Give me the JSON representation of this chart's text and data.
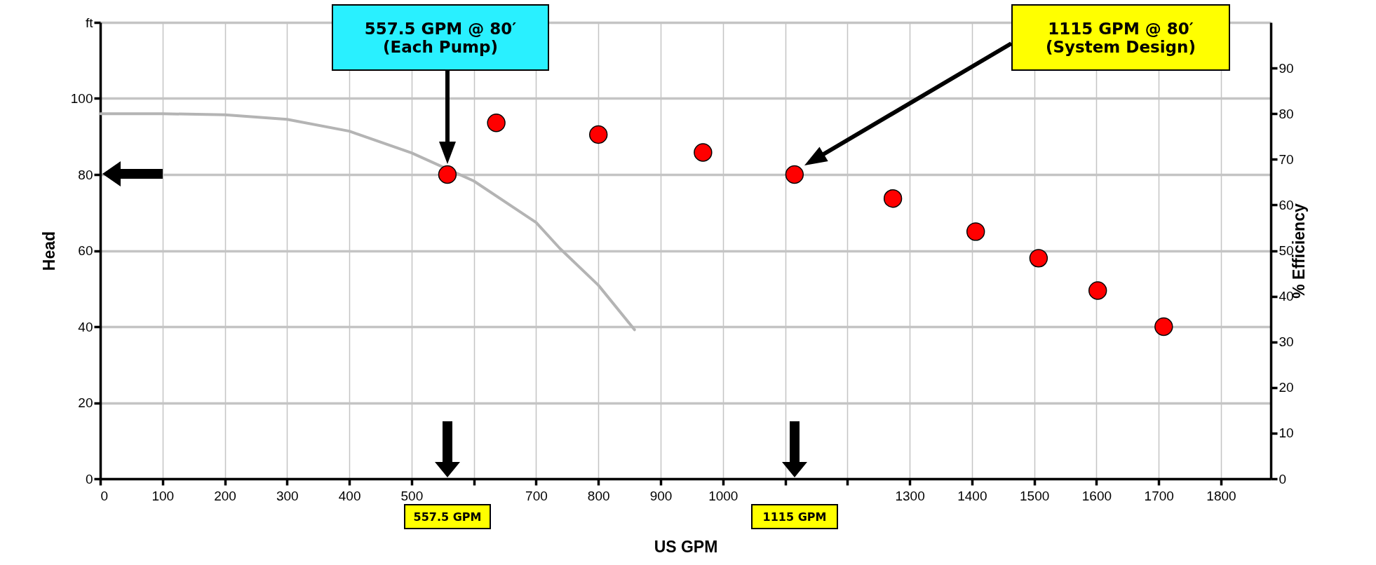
{
  "chart_data": {
    "type": "line",
    "xlabel": "US GPM",
    "ylabel": "Head",
    "y2label": "% Efficiency",
    "xlim": [
      0,
      1880
    ],
    "xticks": [
      0,
      100,
      200,
      300,
      400,
      500,
      {
        "value": 600,
        "label": null
      },
      700,
      800,
      900,
      1000,
      {
        "value": 1100,
        "label": null
      },
      {
        "value": 1200,
        "label": null
      },
      1300,
      1400,
      1500,
      1600,
      1700,
      1800
    ],
    "ylim": [
      0,
      120
    ],
    "yticks": [
      0,
      20,
      40,
      60,
      80,
      100,
      {
        "value": 120,
        "label": "ft"
      }
    ],
    "y2lim": [
      0,
      100
    ],
    "y2ticks": [
      0,
      10,
      20,
      30,
      40,
      50,
      60,
      70,
      80,
      90
    ],
    "grid": true,
    "line_style": "solid",
    "series": [
      {
        "color": "#b4b4b4",
        "x": [
          0,
          100,
          200,
          300,
          400,
          500,
          600,
          700,
          738,
          800,
          858
        ],
        "values": [
          96,
          96,
          95.7,
          94.5,
          91.4,
          85.7,
          78.3,
          67.4,
          60.6,
          50.9,
          39.2
        ]
      },
      {
        "type": "scatter",
        "color": "#ff0000",
        "marker": "circle",
        "x": [
          557.5,
          636,
          800,
          968,
          1115,
          1273,
          1406,
          1507,
          1602,
          1708
        ],
        "values": [
          80,
          93.6,
          90.5,
          85.8,
          80,
          73.7,
          65,
          58,
          49.5,
          40
        ]
      }
    ],
    "annotations": [
      "557.5 GPM @ 80′\n(Each Pump)",
      "1115 GPM @ 80′\n(System Design)",
      "557.5 GPM",
      "1115 GPM"
    ]
  }
}
